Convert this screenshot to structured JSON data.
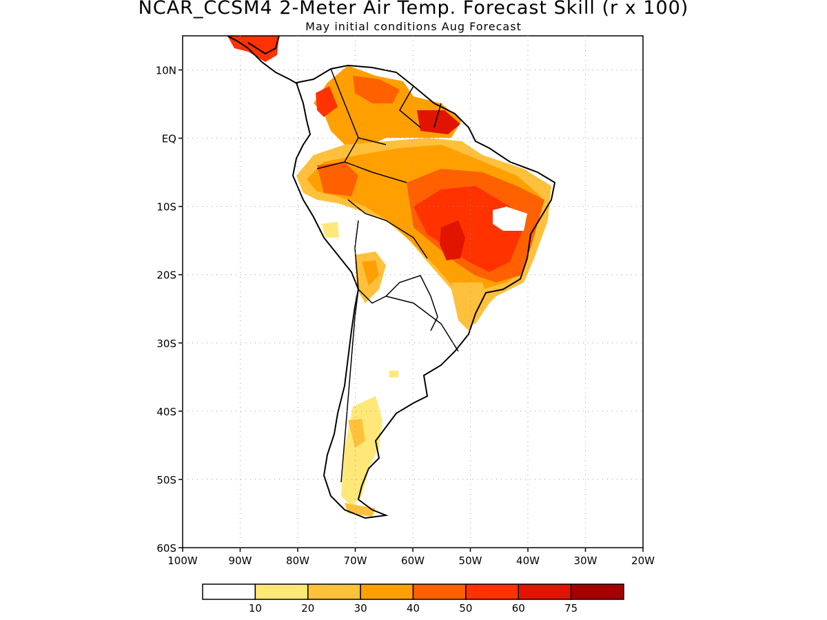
{
  "title": "NCAR_CCSM4 2-Meter Air Temp. Forecast Skill (r x 100)",
  "subtitle": "May initial conditions  Aug Forecast",
  "axes": {
    "lat_labels": [
      "10N",
      "EQ",
      "10S",
      "20S",
      "30S",
      "40S",
      "50S",
      "60S"
    ],
    "lon_labels": [
      "100W",
      "90W",
      "80W",
      "70W",
      "60W",
      "50W",
      "40W",
      "30W",
      "20W"
    ],
    "lon_range": [
      -100,
      -20
    ],
    "lat_range": [
      -60,
      15
    ],
    "grid": "dotted"
  },
  "colorbar": {
    "colors": [
      "#ffffff",
      "#ffe878",
      "#ffc03c",
      "#ffa000",
      "#ff6000",
      "#ff3200",
      "#e11400",
      "#a50000"
    ],
    "labels": [
      "10",
      "20",
      "30",
      "40",
      "50",
      "60",
      "75"
    ]
  }
}
